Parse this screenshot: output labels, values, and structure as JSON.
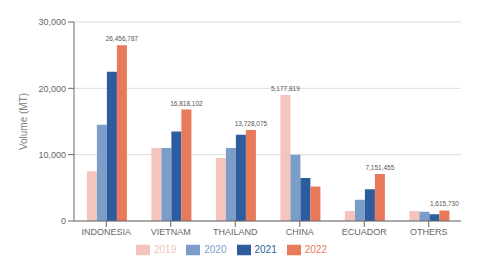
{
  "chart_data": {
    "type": "bar",
    "categories": [
      "INDONESIA",
      "VIETNAM",
      "THAILAND",
      "CHINA",
      "ECUADOR",
      "OTHERS"
    ],
    "series": [
      {
        "name": "2019",
        "color": "#f5c4bc",
        "values": [
          7500,
          11000,
          9500,
          19000,
          1500,
          1500
        ]
      },
      {
        "name": "2020",
        "color": "#7b9ec9",
        "values": [
          14500,
          11000,
          11000,
          10000,
          3200,
          1400
        ]
      },
      {
        "name": "2021",
        "color": "#2d5d9f",
        "values": [
          22500,
          13500,
          13000,
          6500,
          4800,
          1000
        ]
      },
      {
        "name": "2022",
        "color": "#e8795a",
        "values": [
          26500,
          16800,
          13700,
          5200,
          7100,
          1600
        ]
      }
    ],
    "annotations": [
      "26,456,787",
      "16,818,102",
      "13,728,075",
      "5,177,819",
      "7,151,455",
      "1,615,730"
    ],
    "ylabel": "Volume (MT)",
    "ylim": [
      0,
      30000
    ],
    "yticks": [
      0,
      {
        "value": 10000,
        "label": "10,000"
      },
      {
        "value": 20000,
        "label": "20,000"
      },
      {
        "value": 30000,
        "label": "30,000"
      }
    ],
    "grid": true,
    "legend": "bottom"
  }
}
